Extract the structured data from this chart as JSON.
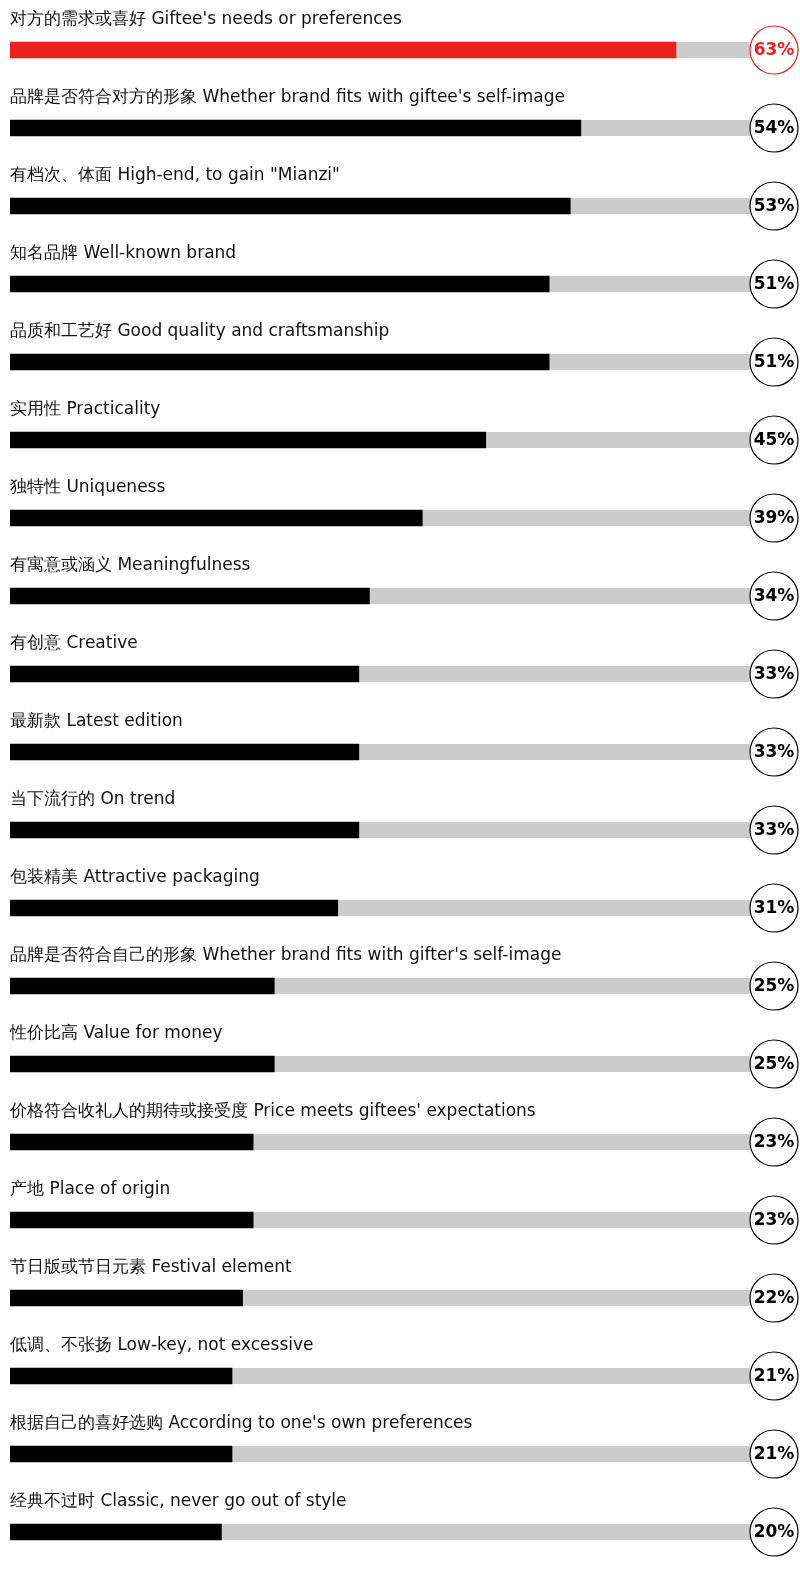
{
  "chart_data": {
    "type": "bar",
    "orientation": "horizontal",
    "tick_labels": false,
    "value_labels": [
      "63%",
      "54%",
      "53%",
      "51%",
      "51%",
      "45%",
      "39%",
      "34%",
      "33%",
      "33%",
      "33%",
      "31%",
      "25%",
      "25%",
      "23%",
      "23%",
      "22%",
      "21%",
      "21%",
      "20%"
    ],
    "categories": [
      "对方的需求或喜好 Giftee's needs or preferences",
      "品牌是否符合对方的形象 Whether brand fits with giftee's self-image",
      "有档次、体面 High-end, to gain \"Mianzi\"",
      "知名品牌 Well-known brand",
      "品质和工艺好 Good quality and craftsmanship",
      "实用性 Practicality",
      "独特性 Uniqueness",
      "有寓意或涵义 Meaningfulness",
      "有创意 Creative",
      "最新款 Latest edition",
      "当下流行的 On trend",
      "包装精美 Attractive packaging",
      "品牌是否符合自己的形象 Whether brand fits with gifter's self-image",
      "性价比高 Value for money",
      "价格符合收礼人的期待或接受度 Price meets giftees' expectations",
      "产地 Place of origin",
      "节日版或节日元素 Festival element",
      "低调、不张扬 Low-key, not excessive",
      "根据自己的喜好选购 According to one's own preferences",
      "经典不过时 Classic, never go out of style"
    ],
    "values": [
      63,
      54,
      53,
      51,
      51,
      45,
      39,
      34,
      33,
      33,
      33,
      31,
      25,
      25,
      23,
      23,
      22,
      21,
      21,
      20
    ],
    "colors": [
      "#e8221f",
      "#000000",
      "#000000",
      "#000000",
      "#000000",
      "#000000",
      "#000000",
      "#000000",
      "#000000",
      "#000000",
      "#000000",
      "#000000",
      "#000000",
      "#000000",
      "#000000",
      "#000000",
      "#000000",
      "#000000",
      "#000000",
      "#000000"
    ]
  }
}
